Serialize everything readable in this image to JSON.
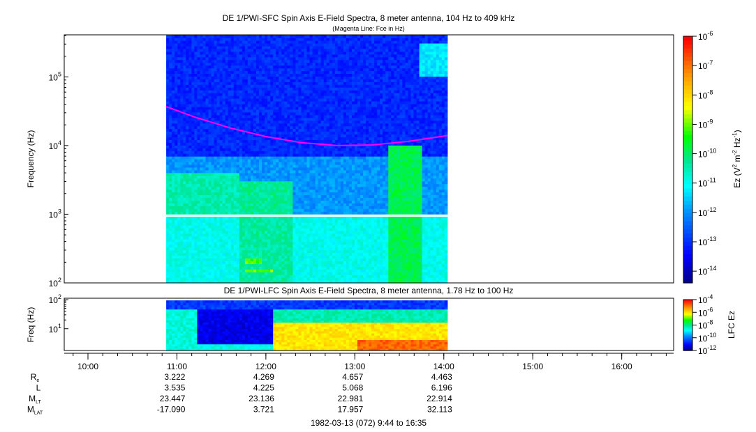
{
  "chart_data": [
    {
      "type": "heatmap",
      "title": "DE 1/PWI-SFC  Spin Axis E-Field Spectra, 8 meter antenna, 104 Hz to 409 kHz",
      "subtitle": "(Magenta Line: Fce in Hz)",
      "ylabel": "Frequency (Hz)",
      "ylim_hz": [
        100,
        409000
      ],
      "yscale": "log",
      "y_ticks": [
        {
          "exp": "2"
        },
        {
          "exp": "3"
        },
        {
          "exp": "4"
        },
        {
          "exp": "5"
        }
      ],
      "xlim_hours": [
        9.733,
        16.583
      ],
      "data_span_hours": [
        10.88,
        14.04
      ],
      "colorbar": {
        "label_main": "Ez (V",
        "label_sup1": "2",
        "label_mid": " m",
        "label_sup2": "-2",
        "label_hz": " Hz",
        "label_sup3": "-1",
        "label_end": ")",
        "range_log10": [
          -14.4,
          -6
        ],
        "tick_exps": [
          "-6",
          "-7",
          "-8",
          "-9",
          "-10",
          "-11",
          "-12",
          "-13",
          "-14"
        ]
      },
      "regions": [
        {
          "t": [
            10.88,
            14.04
          ],
          "logf": [
            3.85,
            5.62
          ],
          "logE": -13.0
        },
        {
          "t": [
            10.88,
            14.04
          ],
          "logf": [
            3.0,
            3.85
          ],
          "logE": -11.9
        },
        {
          "t": [
            10.88,
            11.7
          ],
          "logf": [
            3.0,
            3.6
          ],
          "logE": -10.4
        },
        {
          "t": [
            11.7,
            12.3
          ],
          "logf": [
            3.0,
            3.5
          ],
          "logE": -10.2
        },
        {
          "t": [
            10.88,
            14.04
          ],
          "logf": [
            2.0,
            2.97
          ],
          "logE": -10.9
        },
        {
          "t": [
            11.7,
            12.3
          ],
          "logf": [
            2.0,
            2.97
          ],
          "logE": -10.3
        },
        {
          "t": [
            13.35,
            13.75
          ],
          "logf": [
            2.0,
            4.0
          ],
          "logE": -9.8
        },
        {
          "t": [
            13.7,
            14.04
          ],
          "logf": [
            5.0,
            5.5
          ],
          "logE": -11.2
        },
        {
          "t": [
            11.75,
            11.95
          ],
          "logf": [
            2.3,
            2.36
          ],
          "logE": -9.0
        },
        {
          "t": [
            11.75,
            12.05
          ],
          "logf": [
            2.16,
            2.2
          ],
          "logE": -9.0
        }
      ],
      "gap_logf": [
        2.97,
        3.0
      ],
      "fce_line": {
        "color": "#ff00ff",
        "t": [
          10.88,
          11.2,
          11.6,
          12.0,
          12.4,
          12.8,
          13.2,
          13.6,
          14.04
        ],
        "hz": [
          37000,
          26000,
          18000,
          13500,
          11000,
          10000,
          10200,
          11500,
          14000
        ]
      }
    },
    {
      "type": "heatmap",
      "title": "DE 1/PWI-LFC  Spin Axis E-Field Spectra, 8 meter antenna, 1.78 Hz to 100 Hz",
      "ylabel": "Freq (Hz)",
      "ylim_hz": [
        1.78,
        100
      ],
      "yscale": "log",
      "y_ticks": [
        {
          "exp": "1"
        },
        {
          "exp": "2"
        }
      ],
      "colorbar": {
        "label": "LFC Ez",
        "range_log10": [
          -12,
          -4
        ],
        "tick_exps": [
          "-4",
          "-6",
          "-8",
          "-10",
          "-12"
        ]
      },
      "regions": [
        {
          "t": [
            10.88,
            14.04
          ],
          "logf": [
            1.7,
            2.0
          ],
          "logE": -10.5
        },
        {
          "t": [
            10.88,
            11.2
          ],
          "logf": [
            0.25,
            1.7
          ],
          "logE": -8.5
        },
        {
          "t": [
            11.2,
            12.05
          ],
          "logf": [
            0.5,
            1.7
          ],
          "logE": -11.2
        },
        {
          "t": [
            11.2,
            12.05
          ],
          "logf": [
            0.25,
            0.5
          ],
          "logE": -8.6
        },
        {
          "t": [
            12.05,
            14.04
          ],
          "logf": [
            1.2,
            1.7
          ],
          "logE": -8.2
        },
        {
          "t": [
            12.05,
            14.04
          ],
          "logf": [
            0.25,
            1.2
          ],
          "logE": -6.0
        },
        {
          "t": [
            13.0,
            14.04
          ],
          "logf": [
            0.25,
            0.6
          ],
          "logE": -4.8
        }
      ]
    }
  ],
  "time_axis": {
    "ticks": [
      "10:00",
      "11:00",
      "12:00",
      "13:00",
      "14:00",
      "15:00",
      "16:00"
    ],
    "tick_hours": [
      10,
      11,
      12,
      13,
      14,
      15,
      16
    ]
  },
  "ephemeris": {
    "labels": [
      {
        "main": "R",
        "sub": "e"
      },
      {
        "main": "L",
        "sub": ""
      },
      {
        "main": "M",
        "sub": "LT"
      },
      {
        "main": "M",
        "sub": "LAT"
      }
    ],
    "hours": [
      11,
      12,
      13,
      14
    ],
    "rows": [
      [
        "3.222",
        "4.269",
        "4.657",
        "4.463"
      ],
      [
        "3.535",
        "4.225",
        "5.068",
        "6.196"
      ],
      [
        "23.447",
        "23.136",
        "22.981",
        "22.914"
      ],
      [
        "-17.090",
        "3.721",
        "17.957",
        "32.113"
      ]
    ]
  },
  "footer": "1982-03-13 (072) 9:44 to 16:35"
}
